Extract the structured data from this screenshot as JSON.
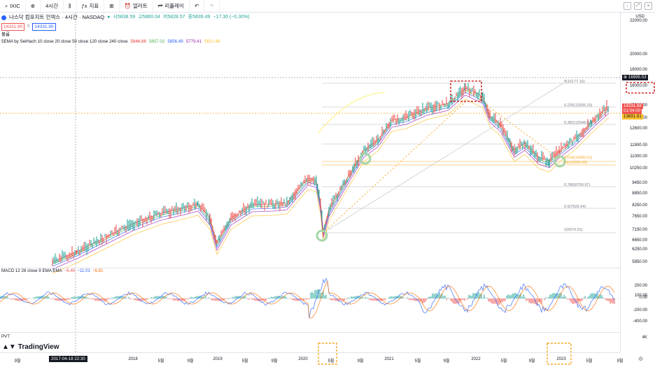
{
  "toolbar": {
    "symbol": "IXIC",
    "interval": "4시간",
    "indicators": "지표",
    "alert": "얼러트",
    "replay": "리플레이"
  },
  "legend": {
    "title": "나스닥 컴포지트 인덱스 · 4시간 · NASDAQ",
    "open": "시5838.59",
    "high": "고5860.04",
    "low": "저5828.57",
    "close": "종5839.49",
    "change": "−17.30 (−0.30%)",
    "bid": "14331.90",
    "ask": "14331.90",
    "volume_label": "볼륨",
    "ema_label": "5EMA by SeiHach 10 close 20 close 50 close 120 close 240 close",
    "ema_values": [
      "5846.86",
      "5857.02",
      "5856.49",
      "5779.41",
      "5621.48"
    ],
    "ema_colors": [
      "#e53935",
      "#4caf50",
      "#2962ff",
      "#9c27b0",
      "#fbc02d"
    ],
    "macd_label": "MACD 12 26 close 9 EMA EMA",
    "macd_values": [
      "−6.40",
      "−11.01",
      "−6.61"
    ],
    "pvt_label": "PVT"
  },
  "price_axis": {
    "currency": "USD",
    "labels": [
      "22000.00",
      "20000.00",
      "18000.00",
      "16000.00",
      "15000.00",
      "14000.00",
      "12600.00",
      "11900.00",
      "11000.00",
      "10250.00",
      "9450.00",
      "8850.00",
      "8250.00",
      "7650.00",
      "7150.00",
      "6650.00",
      "6250.00",
      "5850.00"
    ],
    "crosshair_price": "16995.53",
    "last_price": "14331.88",
    "countdown": "01:04:00",
    "ema_price": "13691.81",
    "macd_labels": [
      "200.00",
      "100.00",
      "0.00",
      "-200.00",
      "-400.00"
    ],
    "pvt_label": "4K"
  },
  "time_axis": {
    "labels": [
      "9월",
      "2017",
      "2018",
      "5월",
      "9월",
      "2019",
      "5월",
      "9월",
      "2020",
      "5월",
      "9월",
      "2021",
      "5월",
      "9월",
      "2022",
      "5월",
      "9월",
      "2023",
      "5월",
      "9월"
    ],
    "crosshair_time": "2017-04-18  22:30"
  },
  "fib_levels": [
    "0(16177.16)",
    "0.236(13935.10)",
    "0.382(12548.07)",
    "0.618(10306.01)",
    "Vb(10002.00)",
    "0.786(8709.97)",
    "0.9(7626.94)",
    "1(6676.91)"
  ],
  "watermark": "TradingView",
  "colors": {
    "up": "#26a69a",
    "down": "#ef5350",
    "fib": "#787b86",
    "highlight": "#d32f2f",
    "marker": "#8bc34a"
  }
}
